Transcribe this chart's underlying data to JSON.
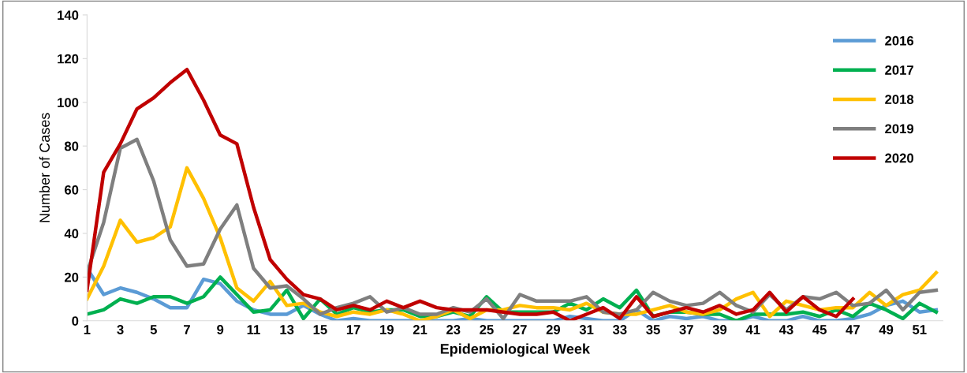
{
  "chart_data": {
    "type": "line",
    "xlabel": "Epidemiological Week",
    "ylabel": "Number of Cases",
    "categories": [
      "1",
      null,
      "3",
      null,
      "5",
      null,
      "7",
      null,
      "9",
      null,
      "11",
      null,
      "13",
      null,
      "15",
      null,
      "17",
      null,
      "19",
      null,
      "21",
      null,
      "23",
      null,
      "25",
      null,
      "27",
      null,
      "29",
      null,
      "31",
      null,
      "33",
      null,
      "35",
      null,
      "37",
      null,
      "39",
      null,
      "41",
      null,
      "43",
      null,
      "45",
      null,
      "47",
      null,
      "49",
      null,
      "51",
      null
    ],
    "ylim": [
      0,
      140
    ],
    "yticks": [
      0,
      20,
      40,
      60,
      80,
      100,
      120,
      140
    ],
    "grid": false,
    "legend": "right",
    "marker": "none",
    "line_style": "solid",
    "series": [
      {
        "name": "2016",
        "color": "#5b9bd5",
        "values": [
          24,
          12,
          15,
          13,
          10,
          6,
          6,
          19,
          17,
          9,
          5,
          3,
          3,
          7,
          3,
          0,
          1,
          0,
          0,
          0,
          0,
          0,
          0,
          1,
          0,
          0,
          0,
          0,
          0,
          2,
          1,
          0,
          0,
          5,
          0,
          2,
          1,
          2,
          0,
          0,
          2,
          0,
          0,
          2,
          0,
          0,
          1,
          3,
          7,
          9,
          4,
          5
        ]
      },
      {
        "name": "2017",
        "color": "#00b050",
        "values": [
          3,
          5,
          10,
          8,
          11,
          11,
          8,
          11,
          20,
          12,
          4,
          5,
          14,
          1,
          10,
          3,
          6,
          4,
          5,
          5,
          2,
          2,
          4,
          2,
          11,
          4,
          4,
          4,
          4,
          8,
          5,
          10,
          6,
          14,
          2,
          4,
          4,
          3,
          3,
          0,
          3,
          3,
          3,
          4,
          2,
          5,
          2,
          8,
          5,
          1,
          8,
          4
        ]
      },
      {
        "name": "2018",
        "color": "#ffc000",
        "values": [
          10,
          25,
          46,
          36,
          38,
          43,
          70,
          56,
          38,
          15,
          9,
          18,
          7,
          8,
          4,
          2,
          4,
          3,
          5,
          3,
          0,
          2,
          5,
          1,
          5,
          5,
          7,
          6,
          6,
          5,
          8,
          4,
          3,
          3,
          5,
          7,
          4,
          3,
          5,
          10,
          13,
          2,
          9,
          7,
          5,
          6,
          6,
          13,
          7,
          12,
          14,
          22
        ]
      },
      {
        "name": "2019",
        "color": "#7f7f7f",
        "values": [
          22,
          45,
          79,
          83,
          64,
          37,
          25,
          26,
          42,
          53,
          24,
          15,
          16,
          10,
          3,
          6,
          8,
          11,
          4,
          6,
          3,
          3,
          6,
          4,
          10,
          1,
          12,
          9,
          9,
          9,
          11,
          4,
          3,
          5,
          13,
          9,
          7,
          8,
          13,
          7,
          4,
          12,
          5,
          11,
          10,
          13,
          7,
          8,
          14,
          5,
          13,
          14
        ]
      },
      {
        "name": "2020",
        "color": "#c00000",
        "values": [
          14,
          68,
          81,
          97,
          102,
          109,
          115,
          101,
          85,
          81,
          52,
          28,
          19,
          12,
          10,
          5,
          7,
          5,
          9,
          6,
          9,
          6,
          5,
          5,
          5,
          4,
          3,
          3,
          4,
          0,
          3,
          6,
          1,
          11,
          2,
          4,
          6,
          4,
          7,
          3,
          5,
          13,
          4,
          11,
          5,
          2,
          10,
          null,
          null,
          null,
          null,
          null
        ]
      }
    ]
  }
}
